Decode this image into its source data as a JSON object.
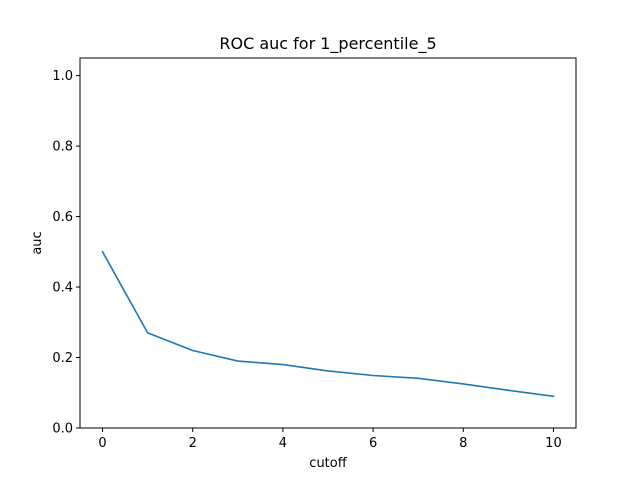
{
  "chart_data": {
    "type": "line",
    "title": "ROC auc for 1_percentile_5",
    "xlabel": "cutoff",
    "ylabel": "auc",
    "xlim": [
      -0.5,
      10.5
    ],
    "ylim": [
      0.0,
      1.05
    ],
    "xticks": [
      0,
      2,
      4,
      6,
      8,
      10
    ],
    "yticks": [
      0.0,
      0.2,
      0.4,
      0.6,
      0.8,
      1.0
    ],
    "xtick_labels": [
      "0",
      "2",
      "4",
      "6",
      "8",
      "10"
    ],
    "ytick_labels": [
      "0.0",
      "0.2",
      "0.4",
      "0.6",
      "0.8",
      "1.0"
    ],
    "grid": false,
    "series": [
      {
        "color": "#1f77b4",
        "x": [
          0,
          1,
          2,
          3,
          4,
          5,
          6,
          7,
          8,
          9,
          10
        ],
        "y": [
          0.5,
          0.27,
          0.22,
          0.19,
          0.18,
          0.162,
          0.149,
          0.141,
          0.125,
          0.107,
          0.09
        ]
      }
    ]
  }
}
